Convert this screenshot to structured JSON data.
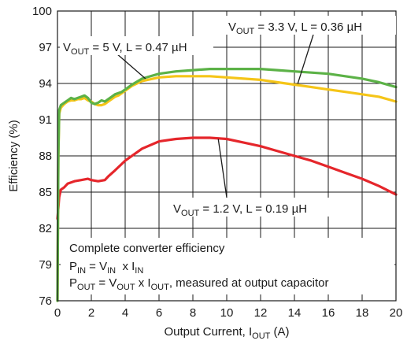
{
  "chart_data": {
    "type": "line",
    "xlabel": {
      "main": "Output Current, I",
      "sub": "OUT",
      "unit": " (A)"
    },
    "ylabel": "Efficiency (%)",
    "xlim": [
      0,
      20
    ],
    "ylim": [
      76,
      100
    ],
    "x_ticks": [
      0,
      2,
      4,
      6,
      8,
      10,
      12,
      14,
      16,
      18,
      20
    ],
    "y_ticks": [
      76,
      79,
      82,
      85,
      88,
      91,
      94,
      97,
      100
    ],
    "grid": true,
    "colors": {
      "green": "#5cb247",
      "yellow": "#f5c518",
      "red": "#e5262b"
    },
    "series": [
      {
        "label": {
          "pre": "V",
          "sub": "OUT",
          "post": " = 5 V, L = 0.47 µH"
        },
        "color": "green",
        "x": [
          0,
          0.05,
          0.1,
          0.2,
          0.4,
          0.6,
          0.8,
          1.0,
          1.2,
          1.4,
          1.6,
          1.8,
          2.0,
          2.2,
          2.4,
          2.6,
          2.8,
          3.0,
          3.2,
          3.4,
          3.6,
          3.8,
          4.0,
          4.4,
          5.0,
          6.0,
          7.0,
          8.0,
          9.0,
          10.0,
          11.0,
          12.0,
          13.0,
          14.0,
          15.0,
          16.0,
          17.0,
          18.0,
          19.0,
          20.0
        ],
        "y": [
          76,
          88,
          91.8,
          92.2,
          92.4,
          92.6,
          92.8,
          92.7,
          92.8,
          92.9,
          93.0,
          92.8,
          92.4,
          92.3,
          92.4,
          92.6,
          92.5,
          92.7,
          92.9,
          93.1,
          93.2,
          93.3,
          93.5,
          93.9,
          94.4,
          94.8,
          95.0,
          95.1,
          95.2,
          95.2,
          95.2,
          95.2,
          95.1,
          95.0,
          94.9,
          94.8,
          94.6,
          94.4,
          94.1,
          93.7
        ]
      },
      {
        "label": {
          "pre": "V",
          "sub": "OUT",
          "post": " = 3.3 V, L = 0.36 µH"
        },
        "color": "yellow",
        "x": [
          0,
          0.05,
          0.1,
          0.2,
          0.4,
          0.6,
          0.8,
          1.0,
          1.2,
          1.4,
          1.6,
          1.8,
          2.0,
          2.2,
          2.4,
          2.6,
          2.8,
          3.0,
          3.2,
          3.4,
          3.6,
          3.8,
          4.0,
          4.4,
          5.0,
          6.0,
          7.0,
          8.0,
          9.0,
          10.0,
          11.0,
          12.0,
          13.0,
          14.0,
          15.0,
          16.0,
          17.0,
          18.0,
          19.0,
          20.0
        ],
        "y": [
          76,
          88,
          91.5,
          92.0,
          92.3,
          92.5,
          92.6,
          92.6,
          92.7,
          92.7,
          92.8,
          92.6,
          92.5,
          92.3,
          92.2,
          92.2,
          92.3,
          92.5,
          92.7,
          92.9,
          93.0,
          93.2,
          93.4,
          93.8,
          94.2,
          94.5,
          94.6,
          94.6,
          94.6,
          94.5,
          94.4,
          94.3,
          94.1,
          93.9,
          93.7,
          93.5,
          93.3,
          93.1,
          92.9,
          92.5
        ]
      },
      {
        "label": {
          "pre": "V",
          "sub": "OUT",
          "post": " = 1.2 V, L = 0.19 µH"
        },
        "color": "red",
        "x": [
          0,
          0.1,
          0.2,
          0.4,
          0.6,
          0.8,
          1.0,
          1.4,
          1.8,
          2.0,
          2.4,
          2.8,
          3.0,
          3.4,
          4.0,
          5.0,
          6.0,
          7.0,
          8.0,
          9.0,
          10.0,
          11.0,
          12.0,
          13.0,
          14.0,
          15.0,
          16.0,
          17.0,
          18.0,
          19.0,
          20.0
        ],
        "y": [
          82.8,
          84.6,
          85.2,
          85.4,
          85.7,
          85.8,
          85.9,
          86.0,
          86.1,
          86.0,
          85.9,
          86.0,
          86.3,
          86.8,
          87.6,
          88.6,
          89.2,
          89.4,
          89.5,
          89.5,
          89.4,
          89.1,
          88.8,
          88.4,
          88.0,
          87.6,
          87.1,
          86.6,
          86.1,
          85.5,
          84.8
        ]
      }
    ],
    "annotation": {
      "line1": "Complete converter efficiency",
      "line2": {
        "a": "P",
        "a_sub": "IN",
        "b": " = V",
        "b_sub": "IN",
        "c": "  x I",
        "c_sub": "IN"
      },
      "line3": {
        "a": "P",
        "a_sub": "OUT",
        "b": " = V",
        "b_sub": "OUT",
        "c": " x I",
        "c_sub": "OUT",
        "d": ", measured at output capacitor"
      }
    }
  }
}
